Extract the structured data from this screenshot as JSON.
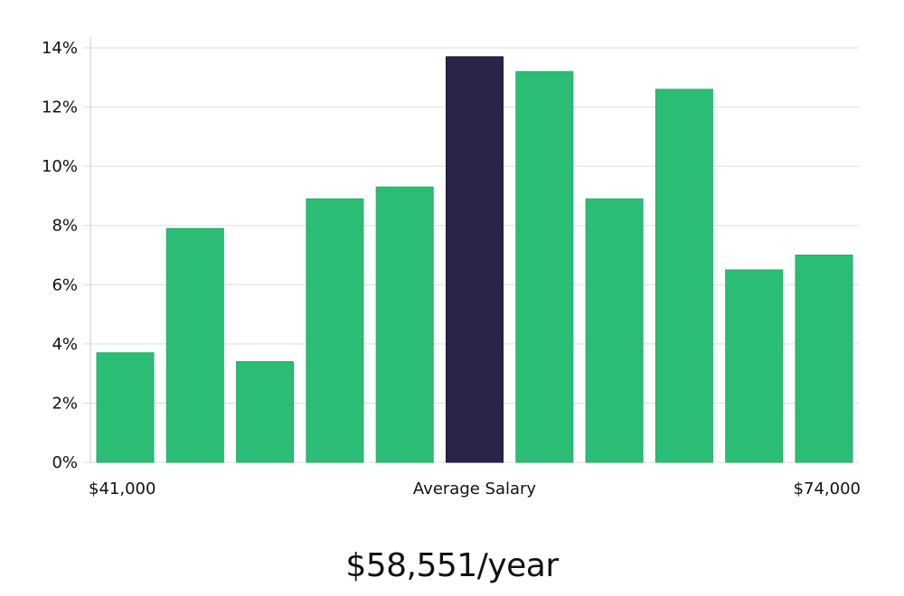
{
  "colors": {
    "bar": "#2bbd76",
    "highlight": "#28244a",
    "grid": "#dddddd",
    "axis": "#cccccc"
  },
  "chart_data": {
    "type": "bar",
    "values": [
      3.7,
      7.9,
      3.4,
      8.9,
      9.3,
      13.7,
      13.2,
      8.9,
      12.6,
      6.5,
      7.0
    ],
    "highlight_index": 5,
    "ylim": [
      0,
      14
    ],
    "y_ticks": [
      0,
      2,
      4,
      6,
      8,
      10,
      12,
      14
    ],
    "y_tick_labels": [
      "0%",
      "2%",
      "4%",
      "6%",
      "8%",
      "10%",
      "12%",
      "14%"
    ],
    "x_labels": {
      "left": "$41,000",
      "center": "Average Salary",
      "right": "$74,000"
    },
    "grid": true
  },
  "summary": {
    "salary_text": "$58,551/year"
  }
}
